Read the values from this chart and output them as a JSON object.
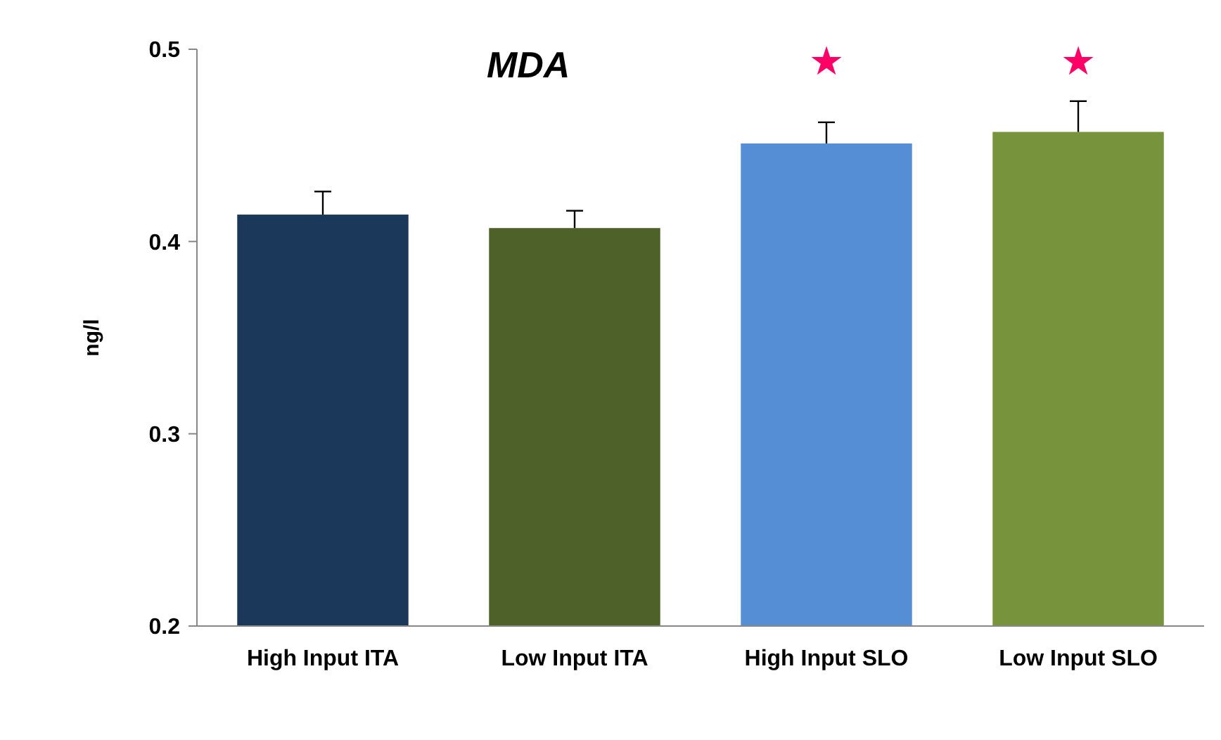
{
  "chart_data": {
    "type": "bar",
    "title": "MDA",
    "ylabel": "ng/l",
    "categories": [
      "High Input ITA",
      "Low Input ITA",
      "High Input SLO",
      "Low Input SLO"
    ],
    "values": [
      0.414,
      0.407,
      0.451,
      0.457
    ],
    "colors": [
      "#1b375a",
      "#4e6128",
      "#558ed5",
      "#77933c"
    ],
    "errors": [
      [
        0.414,
        0.426
      ],
      [
        0.407,
        0.416
      ],
      [
        0.451,
        0.462
      ],
      [
        0.457,
        0.473
      ]
    ],
    "ylim": [
      0.2,
      0.5
    ],
    "yticks": [
      0.2,
      0.3,
      0.4,
      0.5
    ],
    "grid": false,
    "annotations": [
      "★",
      "★"
    ]
  }
}
